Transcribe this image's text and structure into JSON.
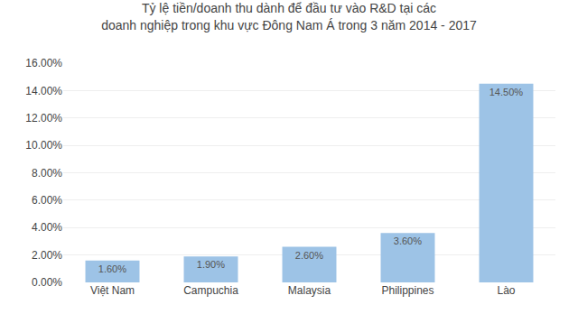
{
  "chart_data": {
    "type": "bar",
    "title": "Tỷ lệ tiền/doanh thu dành để đầu tư vào R&D tại các\ndoanh nghiệp trong khu vực Đông Nam Á trong 3 năm 2014 - 2017",
    "categories": [
      "Việt Nam",
      "Campuchia",
      "Malaysia",
      "Philippines",
      "Lào"
    ],
    "values": [
      1.6,
      1.9,
      2.6,
      3.6,
      14.5
    ],
    "value_labels": [
      "1.60%",
      "1.90%",
      "2.60%",
      "3.60%",
      "14.50%"
    ],
    "data_labels": true,
    "color": "#9DC3E6",
    "ylim": [
      0,
      16.0
    ],
    "yticks": [
      {
        "value": 0,
        "label": "0.00%"
      },
      {
        "value": 2.0,
        "label": "2.00%"
      },
      {
        "value": 4.0,
        "label": "4.00%"
      },
      {
        "value": 6.0,
        "label": "6.00%"
      },
      {
        "value": 8.0,
        "label": "8.00%"
      },
      {
        "value": 10.0,
        "label": "10.00%"
      },
      {
        "value": 12.0,
        "label": "12.00%"
      },
      {
        "value": 14.0,
        "label": "14.00%"
      },
      {
        "value": 16.0,
        "label": "16.00%"
      }
    ],
    "grid": true
  }
}
